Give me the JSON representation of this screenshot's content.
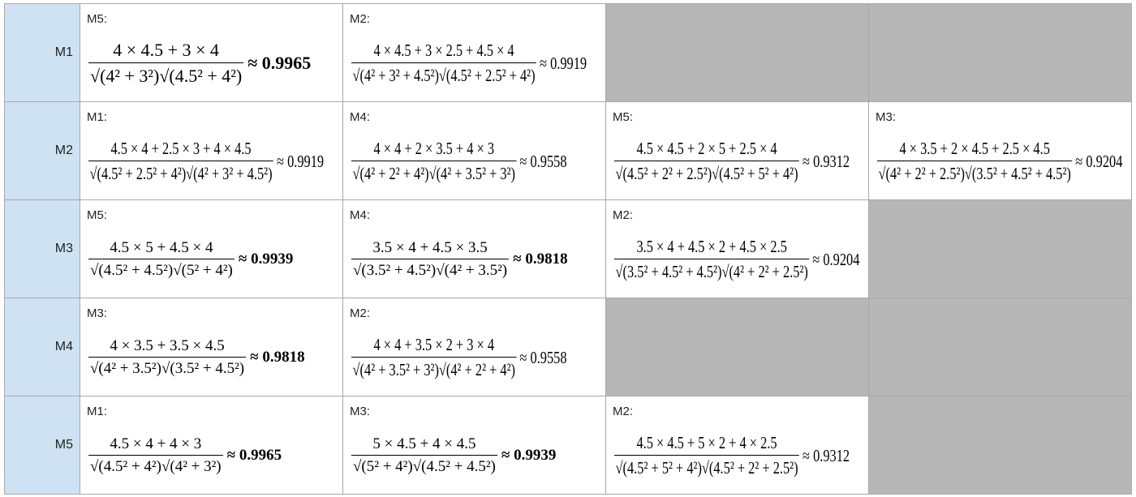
{
  "rows": [
    {
      "header": "M1",
      "cells": [
        {
          "label": "M5:",
          "numerator": "4 × 4.5 + 3 × 4",
          "denominator": "√(4² + 3²)√(4.5² + 4²)",
          "result": "≈ 0.9965"
        },
        {
          "label": "M2:",
          "numerator": "4 × 4.5 + 3 × 2.5 + 4.5 × 4",
          "denominator": "√(4² + 3² + 4.5²)√(4.5² + 2.5² + 4²)",
          "result": "≈ 0.9919"
        }
      ]
    },
    {
      "header": "M2",
      "cells": [
        {
          "label": "M1:",
          "numerator": "4.5 × 4 + 2.5 × 3 + 4 × 4.5",
          "denominator": "√(4.5² + 2.5² + 4²)√(4² + 3² + 4.5²)",
          "result": "≈ 0.9919"
        },
        {
          "label": "M4:",
          "numerator": "4 × 4 + 2 × 3.5 + 4 × 3",
          "denominator": "√(4² + 2² + 4²)√(4² + 3.5² + 3²)",
          "result": "≈ 0.9558"
        },
        {
          "label": "M5:",
          "numerator": "4.5 × 4.5 + 2 × 5 + 2.5 × 4",
          "denominator": "√(4.5² + 2² + 2.5²)√(4.5² + 5² + 4²)",
          "result": "≈ 0.9312"
        },
        {
          "label": "M3:",
          "numerator": "4 × 3.5 + 2 × 4.5 + 2.5 × 4.5",
          "denominator": "√(4² + 2² + 2.5²)√(3.5² + 4.5² + 4.5²)",
          "result": "≈ 0.9204"
        }
      ]
    },
    {
      "header": "M3",
      "cells": [
        {
          "label": "M5:",
          "numerator": "4.5 × 5 + 4.5 × 4",
          "denominator": "√(4.5² + 4.5²)√(5² + 4²)",
          "result": "≈ 0.9939"
        },
        {
          "label": "M4:",
          "numerator": "3.5 × 4 + 4.5 × 3.5",
          "denominator": "√(3.5² + 4.5²)√(4² + 3.5²)",
          "result": "≈ 0.9818"
        },
        {
          "label": "M2:",
          "numerator": "3.5 × 4 + 4.5 × 2 + 4.5 × 2.5",
          "denominator": "√(3.5² + 4.5² + 4.5²)√(4² + 2² + 2.5²)",
          "result": "≈ 0.9204"
        }
      ]
    },
    {
      "header": "M4",
      "cells": [
        {
          "label": "M3:",
          "numerator": "4 × 3.5 + 3.5 × 4.5",
          "denominator": "√(4² + 3.5²)√(3.5² + 4.5²)",
          "result": "≈ 0.9818"
        },
        {
          "label": "M2:",
          "numerator": "4 × 4 + 3.5 × 2 + 3 × 4",
          "denominator": "√(4² + 3.5² + 3²)√(4² + 2² + 4²)",
          "result": "≈ 0.9558"
        }
      ]
    },
    {
      "header": "M5",
      "cells": [
        {
          "label": "M1:",
          "numerator": "4.5 × 4 + 4 × 3",
          "denominator": "√(4.5² + 4²)√(4² + 3²)",
          "result": "≈ 0.9965"
        },
        {
          "label": "M3:",
          "numerator": "5 × 4.5 + 4 × 4.5",
          "denominator": "√(5² + 4²)√(4.5² + 4.5²)",
          "result": "≈ 0.9939"
        },
        {
          "label": "M2:",
          "numerator": "4.5 × 4.5 + 5 × 2 + 4 × 2.5",
          "denominator": "√(4.5² + 5² + 4²)√(4.5² + 2² + 2.5²)",
          "result": "≈ 0.9312"
        }
      ]
    }
  ],
  "colors": {
    "row_header_bg": "#cfe2f3",
    "empty_cell_bg": "#b7b7b7",
    "grid_line": "#a8a8a8"
  }
}
